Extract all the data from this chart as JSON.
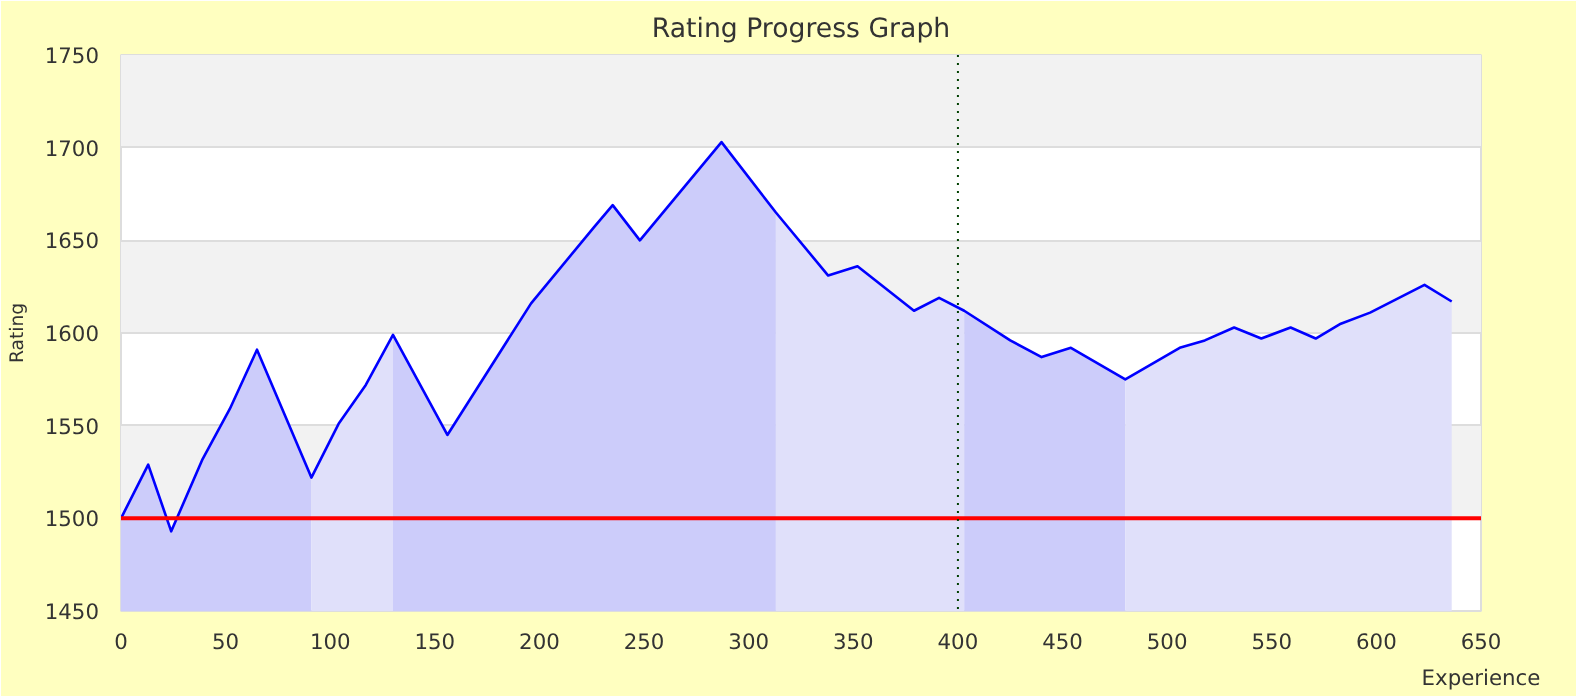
{
  "chart_data": {
    "type": "line",
    "title": "Rating Progress Graph",
    "xlabel": "Experience",
    "ylabel": "Rating",
    "xlim": [
      0,
      650
    ],
    "xticks": [
      0,
      50,
      100,
      150,
      200,
      250,
      300,
      350,
      400,
      450,
      500,
      550,
      600,
      650
    ],
    "ylim": [
      1450,
      1750
    ],
    "yticks": [
      1450,
      1500,
      1550,
      1600,
      1650,
      1700,
      1750
    ],
    "grid": "y",
    "series": [
      {
        "type": "area",
        "color": "#ccccfa",
        "x": [
          0,
          13,
          24,
          39,
          52,
          65,
          91
        ],
        "values": [
          1500,
          1529,
          1493,
          1532,
          1559,
          1591,
          1522
        ]
      },
      {
        "type": "area",
        "color": "#e0e0fa",
        "x": [
          91,
          104,
          117,
          130
        ],
        "values": [
          1522,
          1551,
          1572,
          1599
        ]
      },
      {
        "type": "area",
        "color": "#ccccfa",
        "x": [
          130,
          156,
          196,
          226,
          235,
          248,
          287,
          313
        ],
        "values": [
          1599,
          1545,
          1616,
          1657,
          1669,
          1650,
          1703,
          1665
        ]
      },
      {
        "type": "area",
        "color": "#e0e0fa",
        "x": [
          313,
          338,
          352,
          379,
          391,
          403
        ],
        "values": [
          1665,
          1631,
          1636,
          1612,
          1619,
          1612
        ]
      },
      {
        "type": "area",
        "color": "#ccccfa",
        "x": [
          403,
          425,
          440,
          454,
          480
        ],
        "values": [
          1612,
          1596,
          1587,
          1592,
          1575
        ]
      },
      {
        "type": "area",
        "color": "#e0e0fa",
        "x": [
          480,
          506,
          518,
          532,
          545,
          559,
          571,
          583,
          597,
          623,
          636
        ],
        "values": [
          1575,
          1592,
          1596,
          1603,
          1597,
          1603,
          1597,
          1605,
          1611,
          1626,
          1617
        ]
      },
      {
        "type": "line",
        "color": "#0000ff",
        "x": [
          0,
          13,
          24,
          39,
          52,
          65,
          91,
          104,
          117,
          130,
          156,
          196,
          226,
          235,
          248,
          287,
          313,
          338,
          352,
          379,
          391,
          403,
          425,
          440,
          454,
          480,
          506,
          518,
          532,
          545,
          559,
          571,
          583,
          597,
          623,
          636
        ],
        "values": [
          1500,
          1529,
          1493,
          1532,
          1559,
          1591,
          1522,
          1551,
          1572,
          1599,
          1545,
          1616,
          1657,
          1669,
          1650,
          1703,
          1665,
          1631,
          1636,
          1612,
          1619,
          1612,
          1596,
          1587,
          1592,
          1575,
          1592,
          1596,
          1603,
          1597,
          1603,
          1597,
          1605,
          1611,
          1626,
          1617
        ]
      }
    ],
    "ref_lines": [
      {
        "axis": "y",
        "value": 1500,
        "color": "#ff0000",
        "line_style": "solid"
      },
      {
        "axis": "x",
        "value": 400,
        "color": "#004000",
        "line_style": "dotted"
      }
    ]
  }
}
